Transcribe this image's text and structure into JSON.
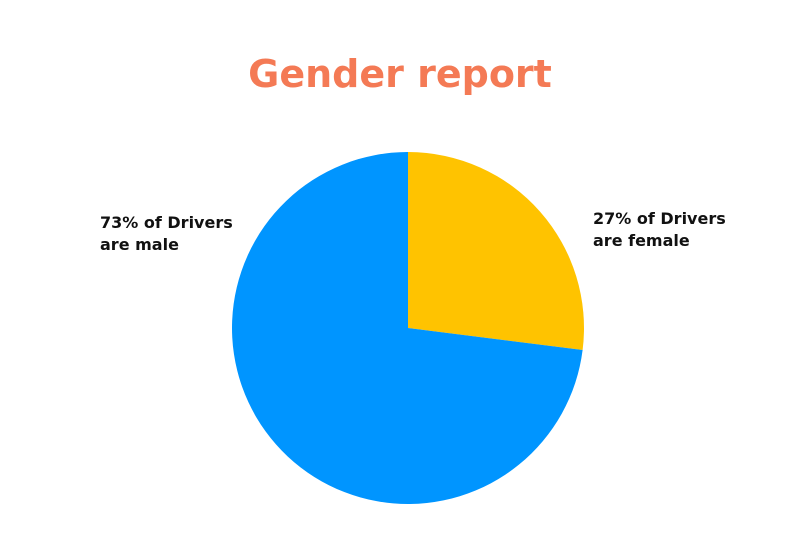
{
  "chart_data": {
    "type": "pie",
    "title": "Gender report",
    "values": [
      27,
      73
    ],
    "value_labels": [
      "27% of Drivers are female",
      "73% of Drivers are male"
    ],
    "colors": [
      "#ffc300",
      "#0095ff"
    ]
  }
}
